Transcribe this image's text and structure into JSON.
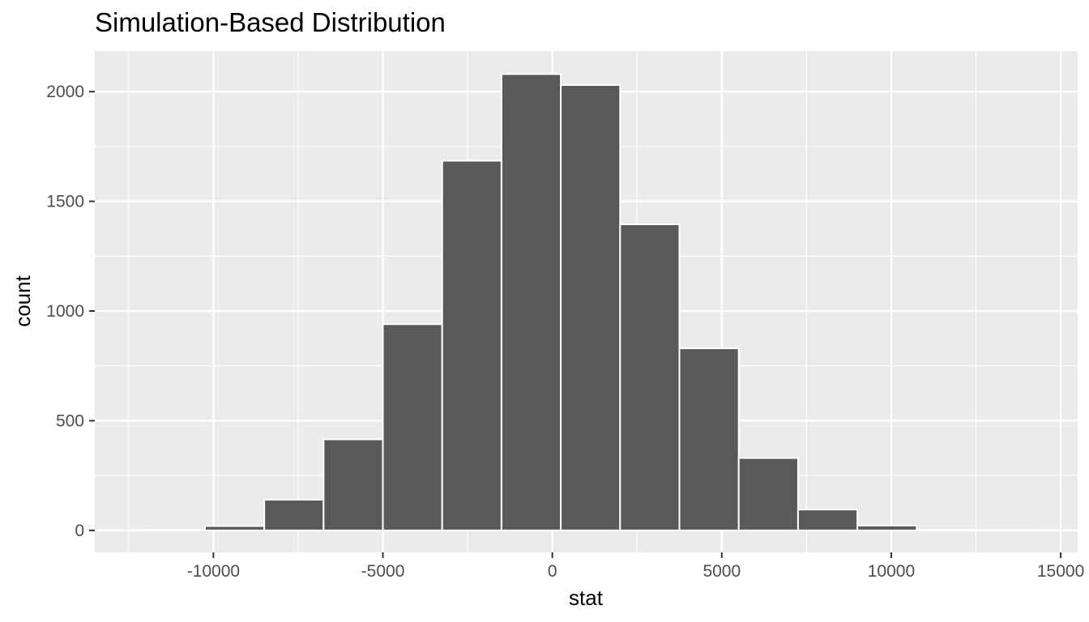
{
  "chart_data": {
    "type": "bar",
    "title": "Simulation-Based Distribution",
    "xlabel": "stat",
    "ylabel": "count",
    "xlim": [
      -13500,
      15500
    ],
    "ylim": [
      -100,
      2185
    ],
    "x_ticks": [
      -10000,
      -5000,
      0,
      5000,
      10000,
      15000
    ],
    "x_tick_labels": [
      "-10000",
      "-5000",
      "0",
      "5000",
      "10000",
      "15000"
    ],
    "y_ticks": [
      0,
      500,
      1000,
      1500,
      2000
    ],
    "y_tick_labels": [
      "0",
      "500",
      "1000",
      "1500",
      "2000"
    ],
    "bins": [
      {
        "x0": -12000,
        "x1": -10250,
        "count": 3
      },
      {
        "x0": -10250,
        "x1": -8500,
        "count": 20
      },
      {
        "x0": -8500,
        "x1": -6750,
        "count": 140
      },
      {
        "x0": -6750,
        "x1": -5000,
        "count": 415
      },
      {
        "x0": -5000,
        "x1": -3250,
        "count": 940
      },
      {
        "x0": -3250,
        "x1": -1500,
        "count": 1685
      },
      {
        "x0": -1500,
        "x1": 250,
        "count": 2080
      },
      {
        "x0": 250,
        "x1": 2000,
        "count": 2030
      },
      {
        "x0": 2000,
        "x1": 3750,
        "count": 1395
      },
      {
        "x0": 3750,
        "x1": 5500,
        "count": 830
      },
      {
        "x0": 5500,
        "x1": 7250,
        "count": 330
      },
      {
        "x0": 7250,
        "x1": 9000,
        "count": 95
      },
      {
        "x0": 9000,
        "x1": 10750,
        "count": 22
      },
      {
        "x0": 10750,
        "x1": 12500,
        "count": 2
      },
      {
        "x0": 12500,
        "x1": 14250,
        "count": 1
      }
    ],
    "grid": true,
    "colors": {
      "panel": "#ebebeb",
      "grid": "#ffffff",
      "bar_fill": "#595959",
      "bar_outline": "#ffffff",
      "tick_text": "#4d4d4d"
    }
  }
}
